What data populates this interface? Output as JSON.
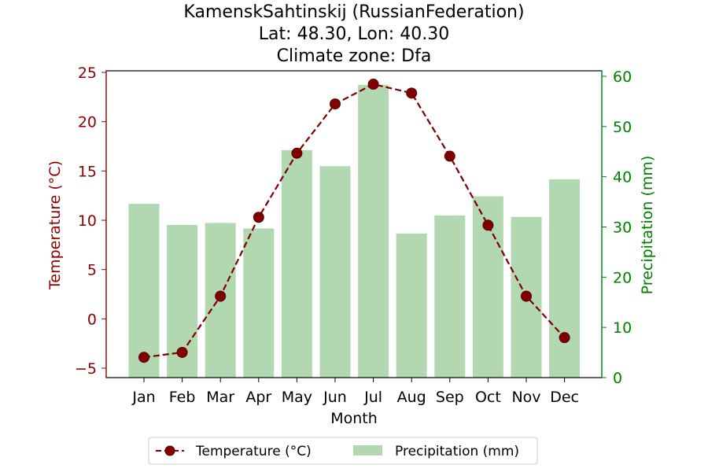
{
  "chart_data": {
    "type": "bar+line",
    "title_lines": [
      "KamenskSahtinskij (RussianFederation)",
      "Lat: 48.30, Lon: 40.30",
      "Climate zone: Dfa"
    ],
    "xlabel": "Month",
    "ylabel_left": "Temperature (°C)",
    "ylabel_right": "Precipitation (mm)",
    "categories": [
      "Jan",
      "Feb",
      "Mar",
      "Apr",
      "May",
      "Jun",
      "Jul",
      "Aug",
      "Sep",
      "Oct",
      "Nov",
      "Dec"
    ],
    "series": [
      {
        "name": "Temperature (°C)",
        "type": "line",
        "axis": "left",
        "color": "#800000",
        "line_style": "dashed",
        "marker": "circle",
        "values": [
          -3.9,
          -3.4,
          2.3,
          10.3,
          16.8,
          21.8,
          23.8,
          22.9,
          16.5,
          9.5,
          2.3,
          -1.9
        ]
      },
      {
        "name": "Precipitation (mm)",
        "type": "bar",
        "axis": "right",
        "color": "#b2d8b2",
        "values": [
          34.6,
          30.4,
          30.8,
          29.7,
          45.3,
          42.1,
          58.3,
          28.7,
          32.3,
          36.1,
          32.0,
          39.5
        ]
      }
    ],
    "ylim_left": [
      -5,
      25
    ],
    "yticks_left": [
      -5,
      0,
      5,
      10,
      15,
      20,
      25
    ],
    "ylim_right": [
      0,
      60
    ],
    "yticks_right": [
      0,
      10,
      20,
      30,
      40,
      50,
      60
    ],
    "left_axis_color": "#8b0000",
    "right_axis_color": "#008000",
    "grid": false,
    "legend_position": "bottom-center"
  }
}
